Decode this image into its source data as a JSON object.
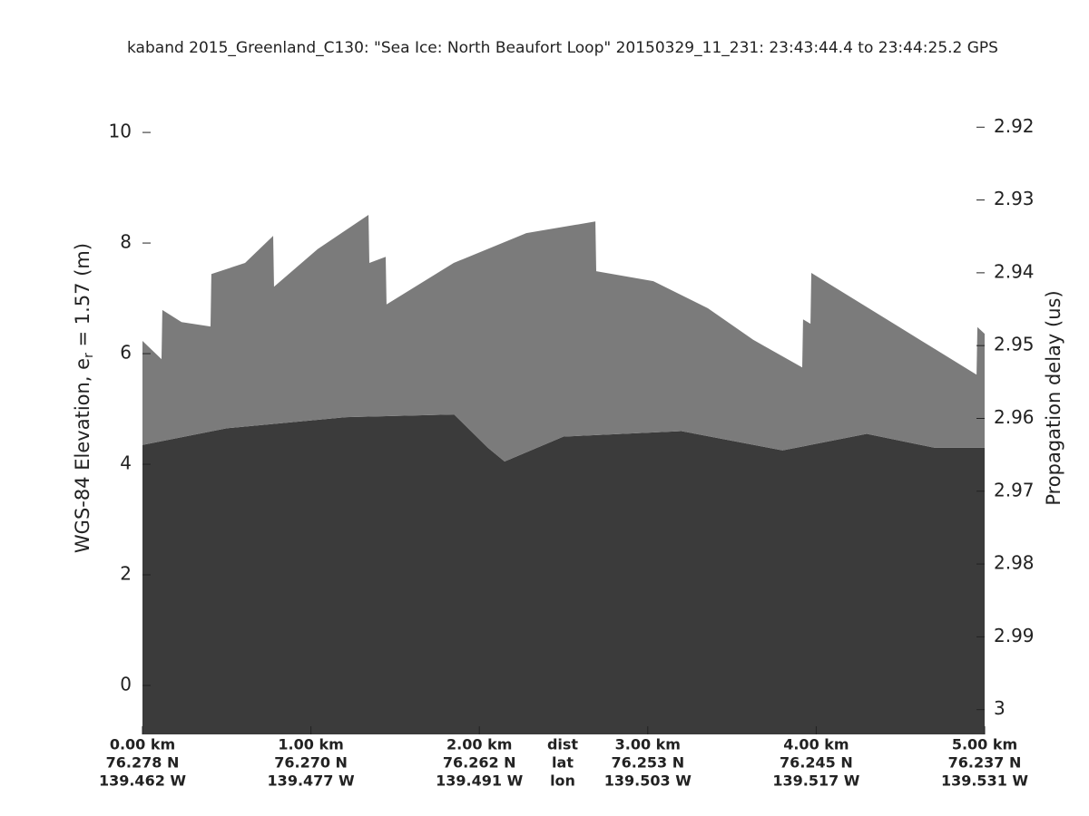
{
  "chart_data": {
    "type": "echogram",
    "title": "kaband 2015_Greenland_C130: \"Sea Ice: North Beaufort Loop\"  20150329_11_231: 23:43:44.4 to 23:44:25.2 GPS",
    "ylabel": [
      "WGS-84 Elevation, e",
      "r",
      " = 1.57 (m)"
    ],
    "y2label": "Propagation delay (us)",
    "xlim": [
      0,
      5
    ],
    "xticks": [
      {
        "value": 0,
        "label": "0.00 km"
      },
      {
        "value": 1,
        "label": "1.00 km"
      },
      {
        "value": 2,
        "label": "2.00 km"
      },
      {
        "value": 3,
        "label": "3.00 km"
      },
      {
        "value": 4,
        "label": "4.00 km"
      },
      {
        "value": 5,
        "label": "5.00 km"
      }
    ],
    "xtick_lat": [
      "76.278 N",
      "76.270 N",
      "76.262 N",
      "76.253 N",
      "76.245 N",
      "76.237 N"
    ],
    "xtick_lon": [
      "139.462 W",
      "139.477 W",
      "139.491 W",
      "139.503 W",
      "139.517 W",
      "139.531 W"
    ],
    "xtick_row_names": [
      "dist",
      "lat",
      "lon"
    ],
    "ylim": [
      -0.885,
      11.28
    ],
    "yticks": [
      0,
      2,
      4,
      6,
      8,
      10
    ],
    "y2lim": [
      3.0034,
      2.911
    ],
    "y2ticks": [
      2.92,
      2.93,
      2.94,
      2.95,
      2.96,
      2.97,
      2.98,
      2.99,
      3
    ],
    "series": [
      {
        "color": "#7b7b7b",
        "x": [
          0,
          0.113,
          0.118,
          0.232,
          0.404,
          0.409,
          0.609,
          0.776,
          0.781,
          1.04,
          1.342,
          1.347,
          1.444,
          1.449,
          1.848,
          2.279,
          2.689,
          2.694,
          3.033,
          3.357,
          3.626,
          3.917,
          3.922,
          3.966,
          3.971,
          4.488,
          4.952,
          4.957,
          5
        ],
        "values": [
          6.23,
          5.9,
          6.79,
          6.57,
          6.49,
          7.44,
          7.64,
          8.13,
          7.21,
          7.89,
          8.51,
          7.64,
          7.75,
          6.89,
          7.64,
          8.18,
          8.39,
          7.49,
          7.31,
          6.82,
          6.25,
          5.75,
          6.62,
          6.54,
          7.46,
          6.49,
          5.62,
          6.48,
          6.36
        ]
      },
      {
        "color": "#3b3b3b",
        "x": [
          0,
          0.5,
          1.2,
          1.85,
          2.05,
          2.15,
          2.5,
          3.2,
          3.8,
          4.3,
          4.7,
          5
        ],
        "values": [
          4.35,
          4.65,
          4.85,
          4.9,
          4.3,
          4.05,
          4.5,
          4.6,
          4.25,
          4.55,
          4.3,
          4.3
        ]
      }
    ]
  }
}
